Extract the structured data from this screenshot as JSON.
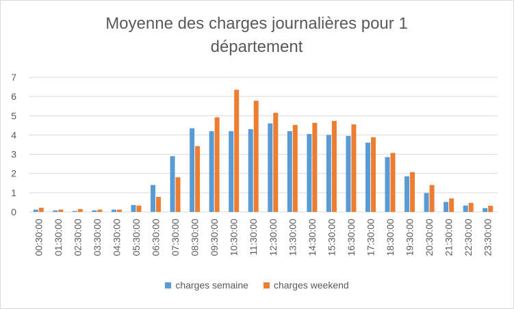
{
  "chart_data": {
    "type": "bar",
    "title": "Moyenne des charges journalières pour 1 département",
    "xlabel": "",
    "ylabel": "",
    "ylim": [
      0,
      7
    ],
    "yticks": [
      "0",
      "1",
      "2",
      "3",
      "4",
      "5",
      "6",
      "7"
    ],
    "grid": true,
    "legend_position": "bottom",
    "categories": [
      "00:30:00",
      "01:30:00",
      "02:30:00",
      "03:30:00",
      "04:30:00",
      "05:30:00",
      "06:30:00",
      "07:30:00",
      "08:30:00",
      "09:30:00",
      "10:30:00",
      "11:30:00",
      "12:30:00",
      "13:30:00",
      "14:30:00",
      "15:30:00",
      "16:30:00",
      "17:30:00",
      "18:30:00",
      "19:30:00",
      "20:30:00",
      "21:30:00",
      "22:30:00",
      "23:30:00"
    ],
    "series": [
      {
        "name": "charges semaine",
        "color": "#5b9bd5",
        "values": [
          0.12,
          0.08,
          0.05,
          0.08,
          0.12,
          0.36,
          1.4,
          2.9,
          4.35,
          4.2,
          4.2,
          4.3,
          4.6,
          4.2,
          4.05,
          4.0,
          3.95,
          3.6,
          2.85,
          1.85,
          0.98,
          0.52,
          0.33,
          0.2
        ]
      },
      {
        "name": "charges weekend",
        "color": "#ed7d31",
        "values": [
          0.22,
          0.12,
          0.15,
          0.12,
          0.12,
          0.33,
          0.78,
          1.8,
          3.42,
          4.92,
          6.35,
          5.78,
          5.15,
          4.52,
          4.63,
          4.73,
          4.55,
          3.88,
          3.07,
          2.07,
          1.4,
          0.7,
          0.47,
          0.32
        ]
      }
    ]
  }
}
